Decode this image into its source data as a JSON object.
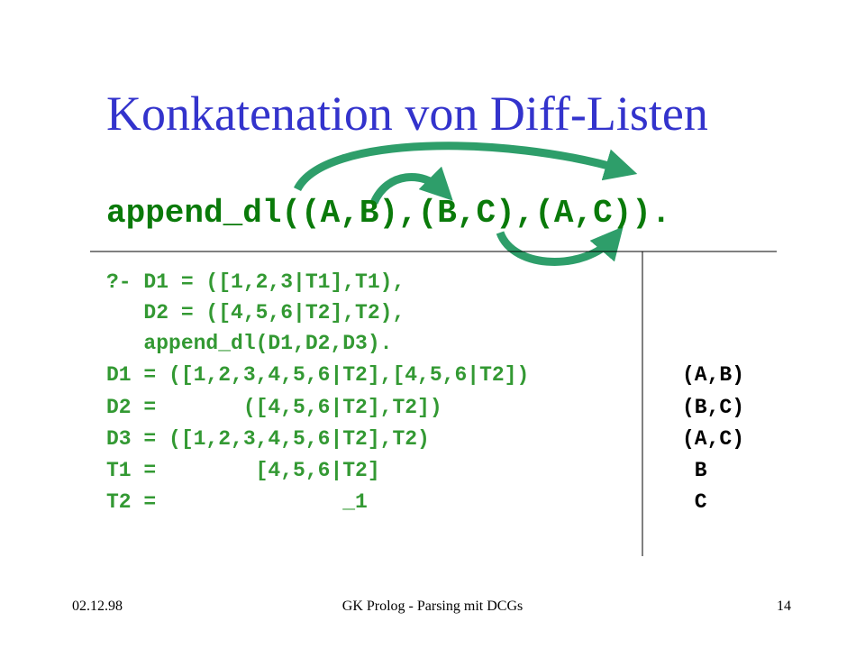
{
  "title": "Konkatenation von Diff-Listen",
  "heading": "append_dl((A,B),(B,C),(A,C)).",
  "query": [
    "?- D1 = ([1,2,3|T1],T1),",
    "   D2 = ([4,5,6|T2],T2),",
    "   append_dl(D1,D2,D3)."
  ],
  "results": [
    [
      "D1 = ([1,2,3,4,5,6|T2],[4,5,6|T2])",
      "(A,B)"
    ],
    [
      "D2 =       ([4,5,6|T2],T2])",
      "(B,C)"
    ],
    [
      "D3 = ([1,2,3,4,5,6|T2],T2)",
      "(A,C)"
    ],
    [
      "T1 =        [4,5,6|T2]",
      " B"
    ],
    [
      "T2 =               _1",
      " C"
    ]
  ],
  "footer": {
    "date": "02.12.98",
    "course": "GK Prolog - Parsing mit DCGs",
    "page": "14"
  }
}
